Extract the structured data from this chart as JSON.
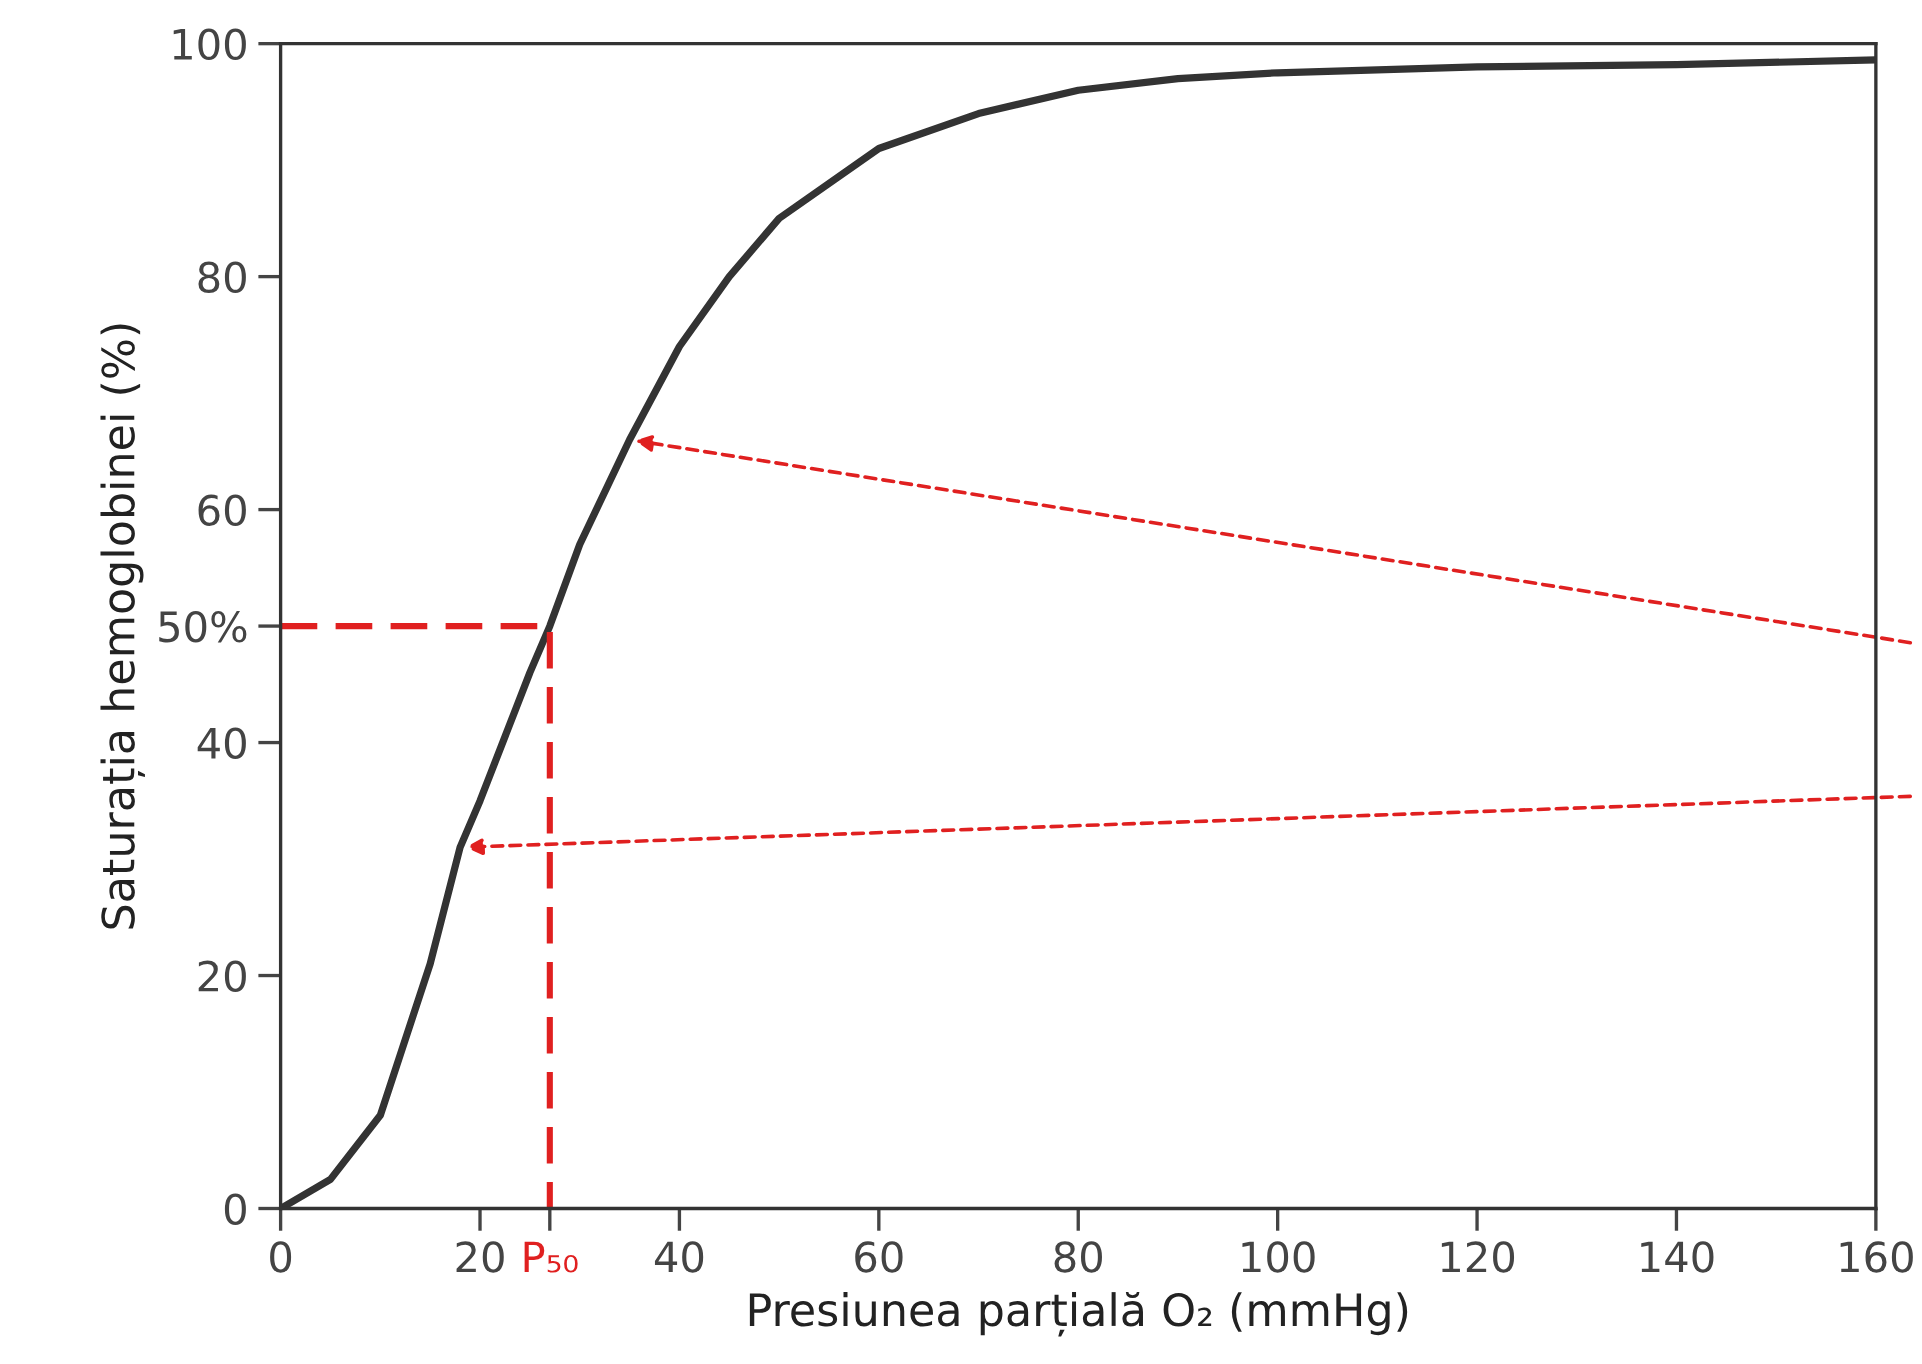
{
  "chart_data": {
    "type": "line",
    "xlabel": "Presiunea parțială O₂ (mmHg)",
    "ylabel": "Saturația hemoglobinei (%)",
    "xlim": [
      0,
      160
    ],
    "ylim": [
      0,
      100
    ],
    "xticks": [
      0,
      20,
      {
        "value": 27,
        "label": "P₅₀"
      },
      40,
      60,
      80,
      100,
      120,
      140,
      160
    ],
    "yticks": [
      0,
      20,
      40,
      {
        "value": 50,
        "label": "50%"
      },
      60,
      80,
      100
    ],
    "grid": false,
    "legend": false,
    "marker": "none",
    "series": [
      {
        "color": "#333333",
        "line_style": "solid",
        "x": [
          0,
          5,
          10,
          15,
          18,
          20,
          25,
          27,
          30,
          35,
          40,
          45,
          50,
          60,
          70,
          80,
          90,
          100,
          120,
          140,
          160
        ],
        "values": [
          0,
          2.5,
          8,
          21,
          31,
          35,
          46,
          50,
          57,
          66,
          74,
          80,
          85,
          91,
          94,
          96,
          97,
          97.5,
          98,
          98.2,
          98.6
        ]
      },
      {
        "color": "#e02020",
        "line_style": "dashed",
        "x": [
          0,
          27,
          27
        ],
        "values": [
          50,
          50,
          0
        ]
      }
    ]
  }
}
